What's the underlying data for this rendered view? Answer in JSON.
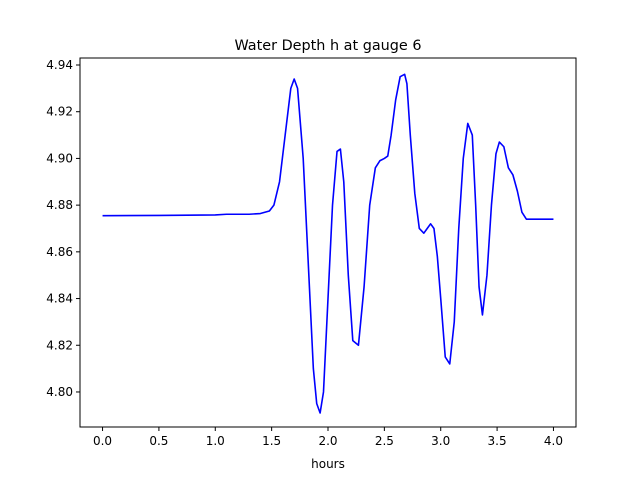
{
  "chart_data": {
    "type": "line",
    "title": "Water Depth h at gauge 6",
    "xlabel": "hours",
    "ylabel": "",
    "xlim": [
      -0.2,
      4.2
    ],
    "ylim": [
      4.785,
      4.943
    ],
    "xticks": [
      0.0,
      0.5,
      1.0,
      1.5,
      2.0,
      2.5,
      3.0,
      3.5,
      4.0
    ],
    "xtick_labels": [
      "0.0",
      "0.5",
      "1.0",
      "1.5",
      "2.0",
      "2.5",
      "3.0",
      "3.5",
      "4.0"
    ],
    "yticks": [
      4.8,
      4.82,
      4.84,
      4.86,
      4.88,
      4.9,
      4.92,
      4.94
    ],
    "ytick_labels": [
      "4.80",
      "4.82",
      "4.84",
      "4.86",
      "4.88",
      "4.90",
      "4.92",
      "4.94"
    ],
    "grid": false,
    "series": [
      {
        "color": "#0000ff",
        "x": [
          0.0,
          0.5,
          1.0,
          1.1,
          1.3,
          1.4,
          1.48,
          1.52,
          1.57,
          1.62,
          1.67,
          1.7,
          1.73,
          1.78,
          1.83,
          1.87,
          1.9,
          1.93,
          1.96,
          2.0,
          2.04,
          2.08,
          2.11,
          2.14,
          2.18,
          2.22,
          2.27,
          2.32,
          2.37,
          2.42,
          2.46,
          2.5,
          2.53,
          2.56,
          2.6,
          2.64,
          2.68,
          2.7,
          2.73,
          2.77,
          2.81,
          2.85,
          2.88,
          2.91,
          2.94,
          2.97,
          3.0,
          3.04,
          3.08,
          3.12,
          3.16,
          3.2,
          3.24,
          3.28,
          3.31,
          3.34,
          3.37,
          3.41,
          3.45,
          3.49,
          3.52,
          3.56,
          3.6,
          3.64,
          3.68,
          3.72,
          3.76,
          3.8,
          3.84,
          3.88,
          3.92,
          3.96,
          4.0
        ],
        "y": [
          4.8755,
          4.8756,
          4.8758,
          4.8761,
          4.8761,
          4.8764,
          4.8775,
          4.88,
          4.89,
          4.91,
          4.93,
          4.934,
          4.93,
          4.9,
          4.85,
          4.81,
          4.795,
          4.791,
          4.8,
          4.84,
          4.88,
          4.903,
          4.904,
          4.89,
          4.85,
          4.822,
          4.82,
          4.845,
          4.88,
          4.896,
          4.899,
          4.9,
          4.901,
          4.91,
          4.925,
          4.935,
          4.936,
          4.932,
          4.91,
          4.885,
          4.87,
          4.868,
          4.87,
          4.872,
          4.87,
          4.858,
          4.84,
          4.815,
          4.812,
          4.83,
          4.87,
          4.9,
          4.915,
          4.91,
          4.88,
          4.845,
          4.833,
          4.85,
          4.88,
          4.902,
          4.907,
          4.905,
          4.896,
          4.893,
          4.886,
          4.877,
          4.874,
          4.874,
          4.874,
          4.874,
          4.874,
          4.874,
          4.874
        ]
      }
    ]
  }
}
